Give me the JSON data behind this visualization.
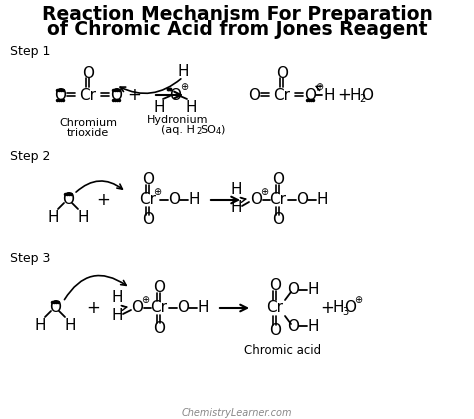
{
  "title_line1": "Reaction Mechanism For Preparation",
  "title_line2": "of Chromic Acid from Jones Reagent",
  "bg_color": "#ffffff",
  "watermark": "ChemistryLearner.com"
}
